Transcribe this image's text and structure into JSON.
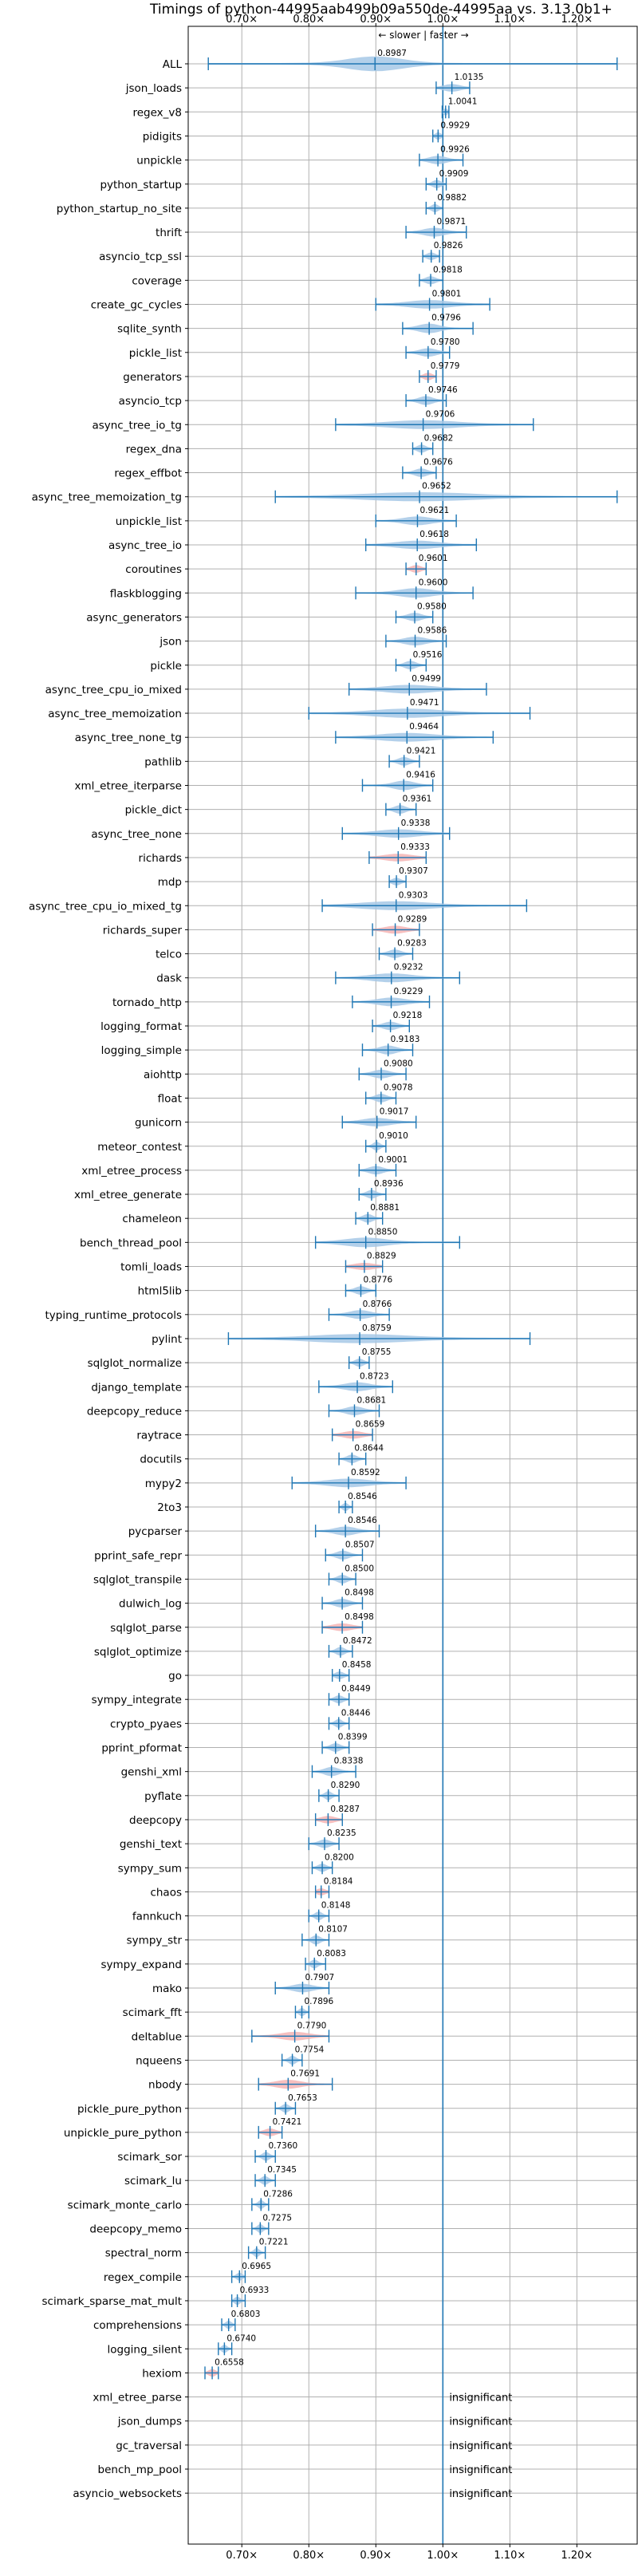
{
  "chart_data": {
    "type": "violin",
    "title": "Timings of python-44995aab499b09a550de-44995aa vs. 3.13.0b1+",
    "subtitle": "← slower | faster →",
    "xlim": [
      0.62,
      1.29
    ],
    "xticks": [
      0.7,
      0.8,
      0.9,
      1.0,
      1.1,
      1.2
    ],
    "xtick_labels": [
      "0.70×",
      "0.80×",
      "0.90×",
      "1.00×",
      "1.10×",
      "1.20×"
    ],
    "reference_line": 1.0,
    "grid": true,
    "colors": {
      "faster": "#a6c8e6",
      "slower": "#f4b4b4",
      "line": "#1f77b4",
      "grid": "#b0b0b0"
    },
    "benchmarks": [
      {
        "name": "ALL",
        "value": 0.8987,
        "min": 0.65,
        "max": 1.26,
        "spread": 0.04,
        "slower": false
      },
      {
        "name": "json_loads",
        "value": 1.0135,
        "min": 0.99,
        "max": 1.04,
        "spread": 0.012,
        "slower": false
      },
      {
        "name": "regex_v8",
        "value": 1.0041,
        "min": 0.999,
        "max": 1.009,
        "spread": 0.003,
        "slower": false
      },
      {
        "name": "pidigits",
        "value": 0.9929,
        "min": 0.985,
        "max": 1.0,
        "spread": 0.004,
        "slower": false
      },
      {
        "name": "unpickle",
        "value": 0.9926,
        "min": 0.965,
        "max": 1.03,
        "spread": 0.012,
        "slower": false
      },
      {
        "name": "python_startup",
        "value": 0.9909,
        "min": 0.975,
        "max": 1.005,
        "spread": 0.006,
        "slower": false
      },
      {
        "name": "python_startup_no_site",
        "value": 0.9882,
        "min": 0.975,
        "max": 1.0,
        "spread": 0.005,
        "slower": false
      },
      {
        "name": "thrift",
        "value": 0.9871,
        "min": 0.945,
        "max": 1.035,
        "spread": 0.015,
        "slower": false
      },
      {
        "name": "asyncio_tcp_ssl",
        "value": 0.9826,
        "min": 0.97,
        "max": 0.995,
        "spread": 0.006,
        "slower": false
      },
      {
        "name": "coverage",
        "value": 0.9818,
        "min": 0.965,
        "max": 1.0,
        "spread": 0.007,
        "slower": false
      },
      {
        "name": "create_gc_cycles",
        "value": 0.9801,
        "min": 0.9,
        "max": 1.07,
        "spread": 0.03,
        "slower": false
      },
      {
        "name": "sqlite_synth",
        "value": 0.9796,
        "min": 0.94,
        "max": 1.045,
        "spread": 0.015,
        "slower": false
      },
      {
        "name": "pickle_list",
        "value": 0.978,
        "min": 0.945,
        "max": 1.01,
        "spread": 0.012,
        "slower": false
      },
      {
        "name": "generators",
        "value": 0.9779,
        "min": 0.965,
        "max": 0.99,
        "spread": 0.006,
        "slower": true
      },
      {
        "name": "asyncio_tcp",
        "value": 0.9746,
        "min": 0.945,
        "max": 1.005,
        "spread": 0.01,
        "slower": false
      },
      {
        "name": "async_tree_io_tg",
        "value": 0.9706,
        "min": 0.84,
        "max": 1.135,
        "spread": 0.05,
        "slower": false
      },
      {
        "name": "regex_dna",
        "value": 0.9682,
        "min": 0.955,
        "max": 0.985,
        "spread": 0.006,
        "slower": false
      },
      {
        "name": "regex_effbot",
        "value": 0.9676,
        "min": 0.94,
        "max": 0.99,
        "spread": 0.009,
        "slower": false
      },
      {
        "name": "async_tree_memoization_tg",
        "value": 0.9652,
        "min": 0.75,
        "max": 1.26,
        "spread": 0.08,
        "slower": false
      },
      {
        "name": "unpickle_list",
        "value": 0.9621,
        "min": 0.9,
        "max": 1.02,
        "spread": 0.02,
        "slower": false
      },
      {
        "name": "async_tree_io",
        "value": 0.9618,
        "min": 0.885,
        "max": 1.05,
        "spread": 0.03,
        "slower": false
      },
      {
        "name": "coroutines",
        "value": 0.9601,
        "min": 0.945,
        "max": 0.975,
        "spread": 0.007,
        "slower": true
      },
      {
        "name": "flaskblogging",
        "value": 0.96,
        "min": 0.87,
        "max": 1.045,
        "spread": 0.025,
        "slower": false
      },
      {
        "name": "async_generators",
        "value": 0.958,
        "min": 0.93,
        "max": 0.985,
        "spread": 0.01,
        "slower": false
      },
      {
        "name": "json",
        "value": 0.9586,
        "min": 0.915,
        "max": 1.005,
        "spread": 0.015,
        "slower": false
      },
      {
        "name": "pickle",
        "value": 0.9516,
        "min": 0.93,
        "max": 0.975,
        "spread": 0.008,
        "slower": false
      },
      {
        "name": "async_tree_cpu_io_mixed",
        "value": 0.9499,
        "min": 0.86,
        "max": 1.065,
        "spread": 0.035,
        "slower": false
      },
      {
        "name": "async_tree_memoization",
        "value": 0.9471,
        "min": 0.8,
        "max": 1.13,
        "spread": 0.05,
        "slower": false
      },
      {
        "name": "async_tree_none_tg",
        "value": 0.9464,
        "min": 0.84,
        "max": 1.075,
        "spread": 0.04,
        "slower": false
      },
      {
        "name": "pathlib",
        "value": 0.9421,
        "min": 0.92,
        "max": 0.965,
        "spread": 0.008,
        "slower": false
      },
      {
        "name": "xml_etree_iterparse",
        "value": 0.9416,
        "min": 0.88,
        "max": 0.985,
        "spread": 0.015,
        "slower": false
      },
      {
        "name": "pickle_dict",
        "value": 0.9361,
        "min": 0.915,
        "max": 0.96,
        "spread": 0.008,
        "slower": false
      },
      {
        "name": "async_tree_none",
        "value": 0.9338,
        "min": 0.85,
        "max": 1.01,
        "spread": 0.03,
        "slower": false
      },
      {
        "name": "richards",
        "value": 0.9333,
        "min": 0.89,
        "max": 0.975,
        "spread": 0.02,
        "slower": true
      },
      {
        "name": "mdp",
        "value": 0.9307,
        "min": 0.92,
        "max": 0.945,
        "spread": 0.006,
        "slower": false
      },
      {
        "name": "async_tree_cpu_io_mixed_tg",
        "value": 0.9303,
        "min": 0.82,
        "max": 1.125,
        "spread": 0.05,
        "slower": false
      },
      {
        "name": "richards_super",
        "value": 0.9289,
        "min": 0.895,
        "max": 0.965,
        "spread": 0.015,
        "slower": true
      },
      {
        "name": "telco",
        "value": 0.9283,
        "min": 0.905,
        "max": 0.955,
        "spread": 0.009,
        "slower": false
      },
      {
        "name": "dask",
        "value": 0.9232,
        "min": 0.84,
        "max": 1.025,
        "spread": 0.03,
        "slower": false
      },
      {
        "name": "tornado_http",
        "value": 0.9229,
        "min": 0.865,
        "max": 0.98,
        "spread": 0.02,
        "slower": false
      },
      {
        "name": "logging_format",
        "value": 0.9218,
        "min": 0.895,
        "max": 0.95,
        "spread": 0.01,
        "slower": false
      },
      {
        "name": "logging_simple",
        "value": 0.9183,
        "min": 0.88,
        "max": 0.955,
        "spread": 0.012,
        "slower": false
      },
      {
        "name": "aiohttp",
        "value": 0.908,
        "min": 0.875,
        "max": 0.945,
        "spread": 0.012,
        "slower": false
      },
      {
        "name": "float",
        "value": 0.9078,
        "min": 0.885,
        "max": 0.93,
        "spread": 0.008,
        "slower": false
      },
      {
        "name": "gunicorn",
        "value": 0.9017,
        "min": 0.85,
        "max": 0.96,
        "spread": 0.02,
        "slower": false
      },
      {
        "name": "meteor_contest",
        "value": 0.901,
        "min": 0.885,
        "max": 0.915,
        "spread": 0.005,
        "slower": false
      },
      {
        "name": "xml_etree_process",
        "value": 0.9001,
        "min": 0.875,
        "max": 0.93,
        "spread": 0.01,
        "slower": false
      },
      {
        "name": "xml_etree_generate",
        "value": 0.8936,
        "min": 0.875,
        "max": 0.915,
        "spread": 0.007,
        "slower": false
      },
      {
        "name": "chameleon",
        "value": 0.8881,
        "min": 0.87,
        "max": 0.91,
        "spread": 0.007,
        "slower": false
      },
      {
        "name": "bench_thread_pool",
        "value": 0.885,
        "min": 0.81,
        "max": 1.025,
        "spread": 0.03,
        "slower": false
      },
      {
        "name": "tomli_loads",
        "value": 0.8829,
        "min": 0.855,
        "max": 0.91,
        "spread": 0.015,
        "slower": true
      },
      {
        "name": "html5lib",
        "value": 0.8776,
        "min": 0.855,
        "max": 0.9,
        "spread": 0.008,
        "slower": false
      },
      {
        "name": "typing_runtime_protocols",
        "value": 0.8766,
        "min": 0.83,
        "max": 0.92,
        "spread": 0.015,
        "slower": false
      },
      {
        "name": "pylint",
        "value": 0.8759,
        "min": 0.68,
        "max": 1.13,
        "spread": 0.07,
        "slower": false
      },
      {
        "name": "sqlglot_normalize",
        "value": 0.8755,
        "min": 0.86,
        "max": 0.89,
        "spread": 0.006,
        "slower": false
      },
      {
        "name": "django_template",
        "value": 0.8723,
        "min": 0.815,
        "max": 0.925,
        "spread": 0.018,
        "slower": false
      },
      {
        "name": "deepcopy_reduce",
        "value": 0.8681,
        "min": 0.83,
        "max": 0.905,
        "spread": 0.012,
        "slower": false
      },
      {
        "name": "raytrace",
        "value": 0.8659,
        "min": 0.835,
        "max": 0.895,
        "spread": 0.014,
        "slower": true
      },
      {
        "name": "docutils",
        "value": 0.8644,
        "min": 0.845,
        "max": 0.885,
        "spread": 0.007,
        "slower": false
      },
      {
        "name": "mypy2",
        "value": 0.8592,
        "min": 0.775,
        "max": 0.945,
        "spread": 0.03,
        "slower": false
      },
      {
        "name": "2to3",
        "value": 0.8546,
        "min": 0.845,
        "max": 0.865,
        "spread": 0.004,
        "slower": false
      },
      {
        "name": "pycparser",
        "value": 0.8546,
        "min": 0.81,
        "max": 0.905,
        "spread": 0.015,
        "slower": false
      },
      {
        "name": "pprint_safe_repr",
        "value": 0.8507,
        "min": 0.825,
        "max": 0.88,
        "spread": 0.009,
        "slower": false
      },
      {
        "name": "sqlglot_transpile",
        "value": 0.85,
        "min": 0.83,
        "max": 0.87,
        "spread": 0.007,
        "slower": false
      },
      {
        "name": "dulwich_log",
        "value": 0.8498,
        "min": 0.82,
        "max": 0.88,
        "spread": 0.01,
        "slower": false
      },
      {
        "name": "sqlglot_parse",
        "value": 0.8498,
        "min": 0.82,
        "max": 0.88,
        "spread": 0.014,
        "slower": true
      },
      {
        "name": "sqlglot_optimize",
        "value": 0.8472,
        "min": 0.83,
        "max": 0.865,
        "spread": 0.006,
        "slower": false
      },
      {
        "name": "go",
        "value": 0.8458,
        "min": 0.835,
        "max": 0.86,
        "spread": 0.006,
        "slower": false
      },
      {
        "name": "sympy_integrate",
        "value": 0.8449,
        "min": 0.83,
        "max": 0.86,
        "spread": 0.006,
        "slower": false
      },
      {
        "name": "crypto_pyaes",
        "value": 0.8446,
        "min": 0.83,
        "max": 0.86,
        "spread": 0.005,
        "slower": false
      },
      {
        "name": "pprint_pformat",
        "value": 0.8399,
        "min": 0.82,
        "max": 0.86,
        "spread": 0.007,
        "slower": false
      },
      {
        "name": "genshi_xml",
        "value": 0.8338,
        "min": 0.805,
        "max": 0.87,
        "spread": 0.01,
        "slower": false
      },
      {
        "name": "pyflate",
        "value": 0.829,
        "min": 0.815,
        "max": 0.845,
        "spread": 0.005,
        "slower": false
      },
      {
        "name": "deepcopy",
        "value": 0.8287,
        "min": 0.81,
        "max": 0.85,
        "spread": 0.01,
        "slower": true
      },
      {
        "name": "genshi_text",
        "value": 0.8235,
        "min": 0.8,
        "max": 0.845,
        "spread": 0.008,
        "slower": false
      },
      {
        "name": "sympy_sum",
        "value": 0.82,
        "min": 0.805,
        "max": 0.835,
        "spread": 0.006,
        "slower": false
      },
      {
        "name": "chaos",
        "value": 0.8184,
        "min": 0.81,
        "max": 0.83,
        "spread": 0.006,
        "slower": true
      },
      {
        "name": "fannkuch",
        "value": 0.8148,
        "min": 0.8,
        "max": 0.83,
        "spread": 0.005,
        "slower": false
      },
      {
        "name": "sympy_str",
        "value": 0.8107,
        "min": 0.79,
        "max": 0.83,
        "spread": 0.006,
        "slower": false
      },
      {
        "name": "sympy_expand",
        "value": 0.8083,
        "min": 0.795,
        "max": 0.825,
        "spread": 0.005,
        "slower": false
      },
      {
        "name": "mako",
        "value": 0.7907,
        "min": 0.75,
        "max": 0.83,
        "spread": 0.014,
        "slower": false
      },
      {
        "name": "scimark_fft",
        "value": 0.7896,
        "min": 0.78,
        "max": 0.8,
        "spread": 0.004,
        "slower": false
      },
      {
        "name": "deltablue",
        "value": 0.779,
        "min": 0.715,
        "max": 0.83,
        "spread": 0.02,
        "slower": true
      },
      {
        "name": "nqueens",
        "value": 0.7754,
        "min": 0.76,
        "max": 0.79,
        "spread": 0.005,
        "slower": false
      },
      {
        "name": "nbody",
        "value": 0.7691,
        "min": 0.725,
        "max": 0.835,
        "spread": 0.018,
        "slower": true
      },
      {
        "name": "pickle_pure_python",
        "value": 0.7653,
        "min": 0.75,
        "max": 0.78,
        "spread": 0.005,
        "slower": false
      },
      {
        "name": "unpickle_pure_python",
        "value": 0.7421,
        "min": 0.725,
        "max": 0.76,
        "spread": 0.008,
        "slower": true
      },
      {
        "name": "scimark_sor",
        "value": 0.736,
        "min": 0.72,
        "max": 0.75,
        "spread": 0.005,
        "slower": false
      },
      {
        "name": "scimark_lu",
        "value": 0.7345,
        "min": 0.72,
        "max": 0.75,
        "spread": 0.005,
        "slower": false
      },
      {
        "name": "scimark_monte_carlo",
        "value": 0.7286,
        "min": 0.715,
        "max": 0.74,
        "spread": 0.004,
        "slower": false
      },
      {
        "name": "deepcopy_memo",
        "value": 0.7275,
        "min": 0.715,
        "max": 0.74,
        "spread": 0.004,
        "slower": false
      },
      {
        "name": "spectral_norm",
        "value": 0.7221,
        "min": 0.71,
        "max": 0.735,
        "spread": 0.004,
        "slower": false
      },
      {
        "name": "regex_compile",
        "value": 0.6965,
        "min": 0.685,
        "max": 0.705,
        "spread": 0.004,
        "slower": false
      },
      {
        "name": "scimark_sparse_mat_mult",
        "value": 0.6933,
        "min": 0.685,
        "max": 0.705,
        "spread": 0.004,
        "slower": false
      },
      {
        "name": "comprehensions",
        "value": 0.6803,
        "min": 0.67,
        "max": 0.69,
        "spread": 0.004,
        "slower": false
      },
      {
        "name": "logging_silent",
        "value": 0.674,
        "min": 0.665,
        "max": 0.685,
        "spread": 0.004,
        "slower": false
      },
      {
        "name": "hexiom",
        "value": 0.6558,
        "min": 0.645,
        "max": 0.665,
        "spread": 0.005,
        "slower": true
      },
      {
        "name": "xml_etree_parse",
        "value": null,
        "label": "insignificant"
      },
      {
        "name": "json_dumps",
        "value": null,
        "label": "insignificant"
      },
      {
        "name": "gc_traversal",
        "value": null,
        "label": "insignificant"
      },
      {
        "name": "bench_mp_pool",
        "value": null,
        "label": "insignificant"
      },
      {
        "name": "asyncio_websockets",
        "value": null,
        "label": "insignificant"
      }
    ]
  }
}
